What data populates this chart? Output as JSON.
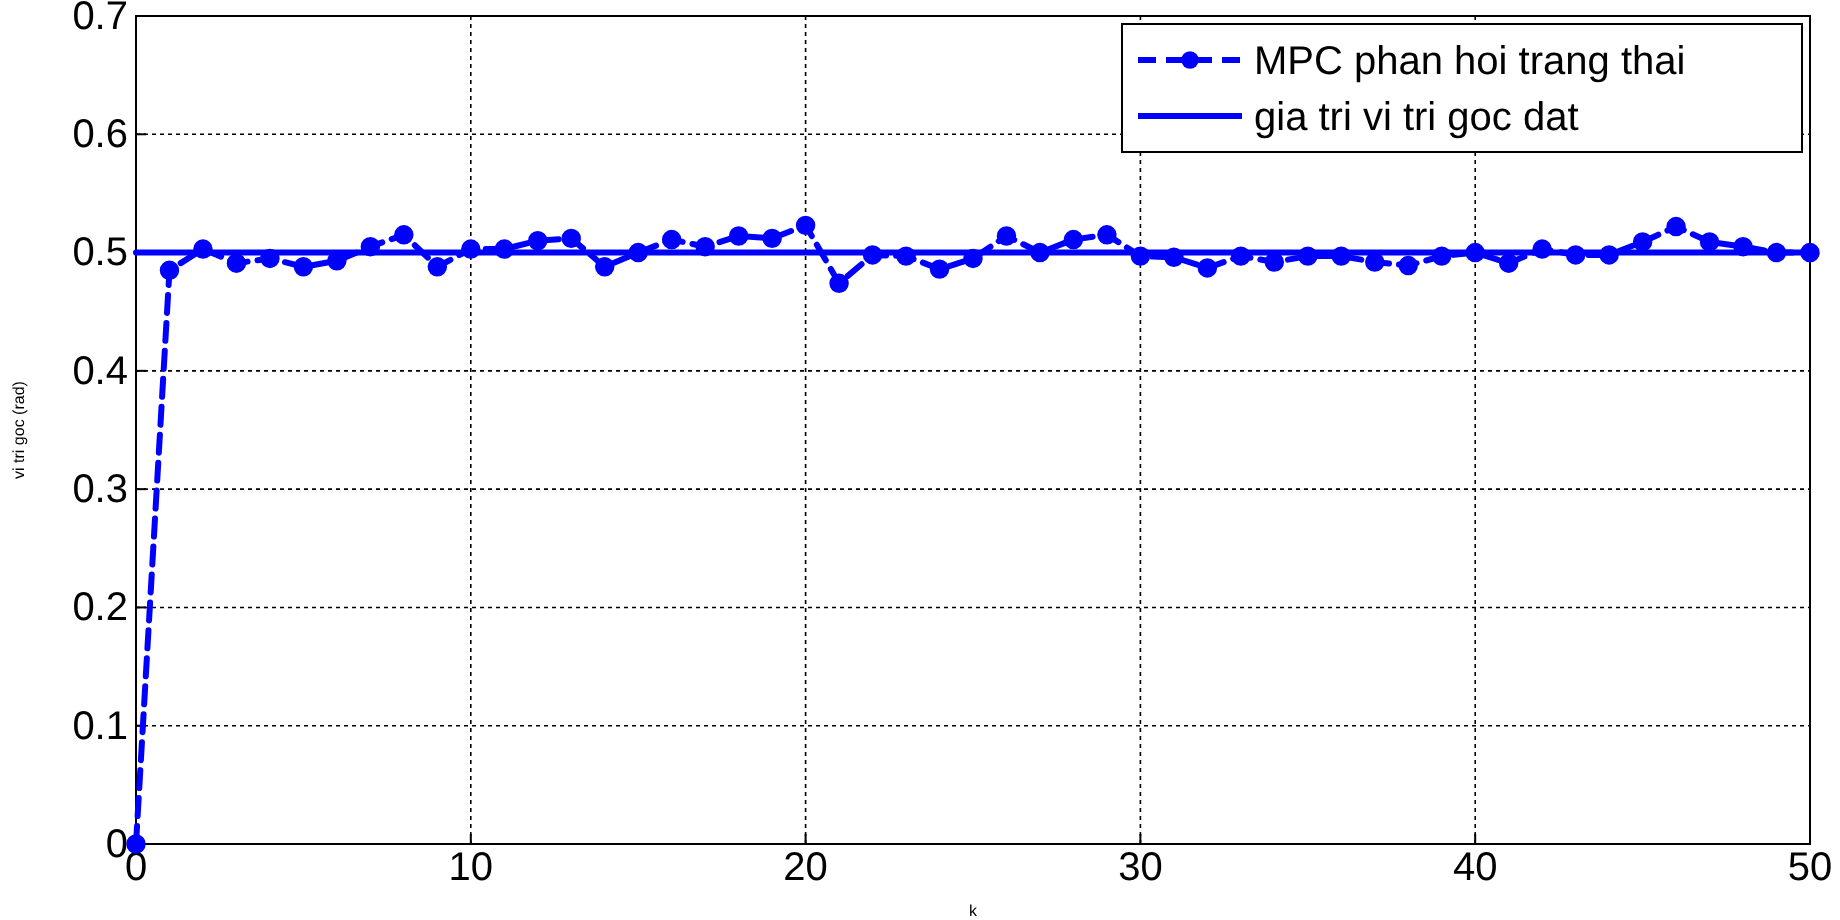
{
  "chart_data": {
    "type": "line",
    "xlabel": "k",
    "ylabel": "vi tri goc (rad)",
    "xlim": [
      0,
      50
    ],
    "xticks": [
      0,
      10,
      20,
      30,
      40,
      50
    ],
    "ylim": [
      0,
      0.7
    ],
    "yticks": [
      0,
      0.1,
      0.2,
      0.3,
      0.4,
      0.5,
      0.6,
      0.7
    ],
    "grid": true,
    "legend": "top right",
    "x": [
      0,
      1,
      2,
      3,
      4,
      5,
      6,
      7,
      8,
      9,
      10,
      11,
      12,
      13,
      14,
      15,
      16,
      17,
      18,
      19,
      20,
      21,
      22,
      23,
      24,
      25,
      26,
      27,
      28,
      29,
      30,
      31,
      32,
      33,
      34,
      35,
      36,
      37,
      38,
      39,
      40,
      41,
      42,
      43,
      44,
      45,
      46,
      47,
      48,
      49,
      50
    ],
    "series": [
      {
        "name": "MPC phan hoi trang thai",
        "color": "#0000ff",
        "marker": "circle",
        "line_style": "dashed",
        "values": [
          0,
          0.485,
          0.503,
          0.491,
          0.495,
          0.488,
          0.493,
          0.505,
          0.515,
          0.488,
          0.503,
          0.503,
          0.51,
          0.512,
          0.488,
          0.5,
          0.511,
          0.505,
          0.514,
          0.512,
          0.523,
          0.474,
          0.498,
          0.497,
          0.486,
          0.495,
          0.514,
          0.5,
          0.511,
          0.515,
          0.497,
          0.496,
          0.487,
          0.497,
          0.492,
          0.497,
          0.497,
          0.492,
          0.489,
          0.497,
          0.5,
          0.491,
          0.503,
          0.498,
          0.498,
          0.509,
          0.522,
          0.509,
          0.505,
          0.5,
          0.5
        ]
      },
      {
        "name": "gia tri vi tri goc dat",
        "color": "#0000ff",
        "marker": "none",
        "line_style": "solid",
        "x": [
          0,
          50
        ],
        "values": [
          0.5,
          0.5
        ]
      }
    ]
  }
}
